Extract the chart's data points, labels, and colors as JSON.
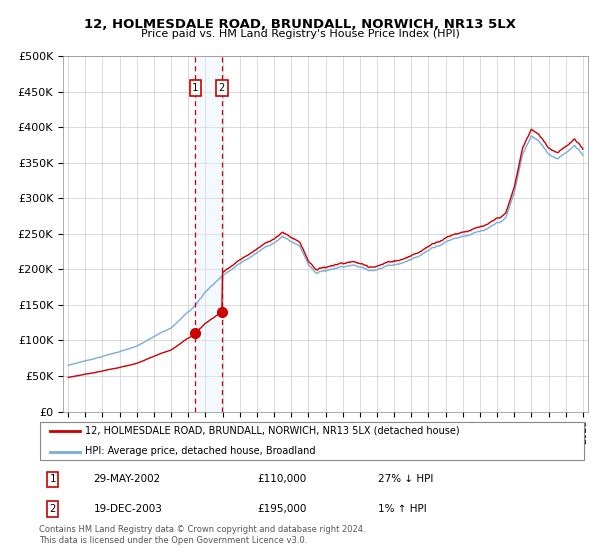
{
  "title": "12, HOLMESDALE ROAD, BRUNDALL, NORWICH, NR13 5LX",
  "subtitle": "Price paid vs. HM Land Registry's House Price Index (HPI)",
  "legend_line1": "12, HOLMESDALE ROAD, BRUNDALL, NORWICH, NR13 5LX (detached house)",
  "legend_line2": "HPI: Average price, detached house, Broadland",
  "sale1_date": "29-MAY-2002",
  "sale1_price": "£110,000",
  "sale1_hpi": "27% ↓ HPI",
  "sale2_date": "19-DEC-2003",
  "sale2_price": "£195,000",
  "sale2_hpi": "1% ↑ HPI",
  "footer": "Contains HM Land Registry data © Crown copyright and database right 2024.\nThis data is licensed under the Open Government Licence v3.0.",
  "hpi_color": "#7aaddc",
  "price_color": "#cc0000",
  "span_color": "#ddeeff",
  "sale1_year": 2002.41,
  "sale2_year": 2003.96,
  "sale1_price_val": 110000,
  "sale2_price_val": 195000,
  "ylim_max": 500000,
  "xlim_min": 1994.7,
  "xlim_max": 2025.3,
  "background_color": "#ffffff",
  "grid_color": "#cccccc"
}
